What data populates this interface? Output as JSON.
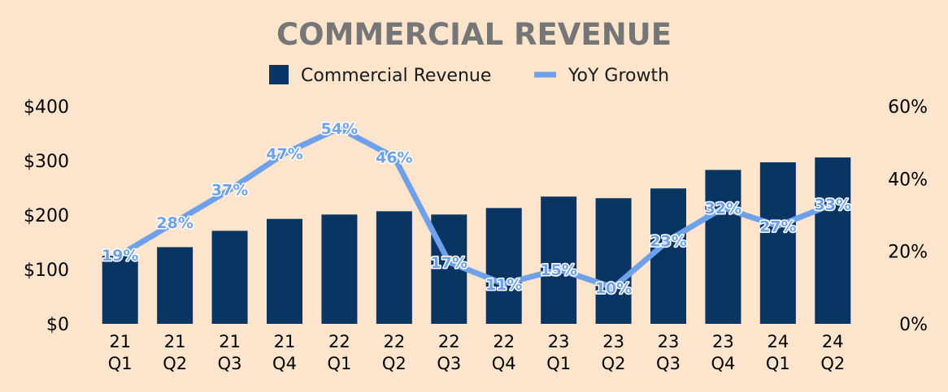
{
  "chart_data": {
    "type": "bar",
    "title": "COMMERCIAL REVENUE",
    "categories": [
      [
        "21",
        "Q1"
      ],
      [
        "21",
        "Q2"
      ],
      [
        "21",
        "Q3"
      ],
      [
        "21",
        "Q4"
      ],
      [
        "22",
        "Q1"
      ],
      [
        "22",
        "Q2"
      ],
      [
        "22",
        "Q3"
      ],
      [
        "22",
        "Q4"
      ],
      [
        "23",
        "Q1"
      ],
      [
        "23",
        "Q2"
      ],
      [
        "23",
        "Q3"
      ],
      [
        "23",
        "Q4"
      ],
      [
        "24",
        "Q1"
      ],
      [
        "24",
        "Q2"
      ]
    ],
    "series": [
      {
        "name": "Commercial Revenue",
        "type": "bar",
        "axis": "left",
        "color": "#093562",
        "values": [
          125,
          141,
          171,
          193,
          201,
          207,
          201,
          213,
          234,
          231,
          249,
          283,
          297,
          306
        ]
      },
      {
        "name": "YoY Growth",
        "type": "line",
        "axis": "right",
        "color": "#6fa0ea",
        "values": [
          19,
          28,
          37,
          47,
          54,
          46,
          17,
          11,
          15,
          10,
          23,
          32,
          27,
          33
        ],
        "labels": [
          "19%",
          "28%",
          "37%",
          "47%",
          "54%",
          "46%",
          "17%",
          "11%",
          "15%",
          "10%",
          "23%",
          "32%",
          "27%",
          "33%"
        ]
      }
    ],
    "y_left": {
      "ylim": [
        0,
        400
      ],
      "ticks": [
        0,
        100,
        200,
        300,
        400
      ],
      "tick_labels": [
        "$0",
        "$100",
        "$200",
        "$300",
        "$400"
      ]
    },
    "y_right": {
      "ylim": [
        0,
        60
      ],
      "ticks": [
        0,
        20,
        40,
        60
      ],
      "tick_labels": [
        "0%",
        "20%",
        "40%",
        "60%"
      ]
    },
    "legend": {
      "position": "top-center",
      "entries": [
        "Commercial Revenue",
        "YoY Growth"
      ]
    },
    "grid": false,
    "background": "#fce5cc"
  }
}
